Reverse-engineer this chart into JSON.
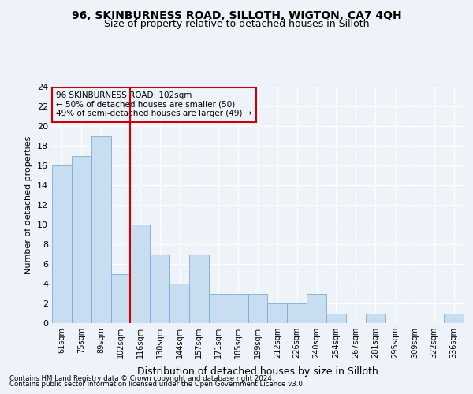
{
  "title1": "96, SKINBURNESS ROAD, SILLOTH, WIGTON, CA7 4QH",
  "title2": "Size of property relative to detached houses in Silloth",
  "xlabel": "Distribution of detached houses by size in Silloth",
  "ylabel": "Number of detached properties",
  "categories": [
    "61sqm",
    "75sqm",
    "89sqm",
    "102sqm",
    "116sqm",
    "130sqm",
    "144sqm",
    "157sqm",
    "171sqm",
    "185sqm",
    "199sqm",
    "212sqm",
    "226sqm",
    "240sqm",
    "254sqm",
    "267sqm",
    "281sqm",
    "295sqm",
    "309sqm",
    "322sqm",
    "336sqm"
  ],
  "values": [
    16,
    17,
    19,
    5,
    10,
    7,
    4,
    7,
    3,
    3,
    3,
    2,
    2,
    3,
    1,
    0,
    1,
    0,
    0,
    0,
    1
  ],
  "bar_color": "#c9ddf0",
  "bar_edge_color": "#7aadd4",
  "vline_x": 3.5,
  "vline_color": "#cc0000",
  "annotation_lines": [
    "96 SKINBURNESS ROAD: 102sqm",
    "← 50% of detached houses are smaller (50)",
    "49% of semi-detached houses are larger (49) →"
  ],
  "annotation_box_color": "#cc0000",
  "ylim": [
    0,
    24
  ],
  "yticks": [
    0,
    2,
    4,
    6,
    8,
    10,
    12,
    14,
    16,
    18,
    20,
    22,
    24
  ],
  "footer1": "Contains HM Land Registry data © Crown copyright and database right 2024.",
  "footer2": "Contains public sector information licensed under the Open Government Licence v3.0.",
  "bg_color": "#eef2f9",
  "grid_color": "#ffffff",
  "title1_fontsize": 10,
  "title2_fontsize": 9,
  "ylabel_fontsize": 8,
  "xlabel_fontsize": 9
}
